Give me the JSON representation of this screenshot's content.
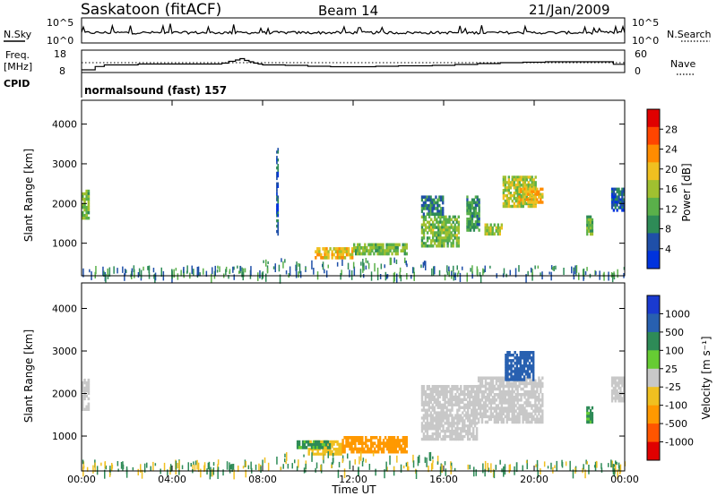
{
  "header": {
    "station": "Saskatoon (fitACF)",
    "beam": "Beam 14",
    "date": "21/Jan/2009"
  },
  "nsky_panel": {
    "left_label": "N.Sky",
    "left_ticks": [
      "10^5",
      "10^0"
    ],
    "right_ticks": [
      "10^5",
      "10^0"
    ],
    "right_label": "N.Search"
  },
  "freq_panel": {
    "left_label_1": "Freq.",
    "left_label_2": "[MHz]",
    "left_ticks": [
      "18",
      "8"
    ],
    "right_ticks": [
      "60",
      "0"
    ],
    "right_label": "Nave",
    "cpid_label": "CPID",
    "mode_text": "normalsound (fast) 157"
  },
  "power_panel": {
    "ylabel": "Slant Range [km]",
    "yticks": [
      "4000",
      "3000",
      "2000",
      "1000"
    ],
    "colorbar_label": "Power [dB]",
    "colorbar_ticks": [
      "28",
      "24",
      "20",
      "16",
      "12",
      "8",
      "4"
    ],
    "colors": [
      "#0033dd",
      "#1f4fa8",
      "#2e8b57",
      "#5ab04a",
      "#a0c030",
      "#f0c020",
      "#ff8c00",
      "#ff4500",
      "#e00000"
    ]
  },
  "velocity_panel": {
    "ylabel": "Slant Range [km]",
    "yticks": [
      "4000",
      "3000",
      "2000",
      "1000"
    ],
    "colorbar_label": "Velocity [m s⁻¹]",
    "colorbar_ticks": [
      "1000",
      "500",
      "100",
      "25",
      "-25",
      "-100",
      "-500",
      "-1000"
    ],
    "colors": [
      "#1a3ad0",
      "#2860b0",
      "#2e8b57",
      "#66cc33",
      "#c8c8c8",
      "#f0c020",
      "#ff9900",
      "#ff5500",
      "#e00000"
    ]
  },
  "xaxis": {
    "ticks": [
      "00:00",
      "04:00",
      "08:00",
      "12:00",
      "16:00",
      "20:00",
      "00:00"
    ],
    "label": "Time UT"
  },
  "chart_data": {
    "type": "heatmap",
    "x_range_hours": [
      0,
      24
    ],
    "y_range_km": [
      180,
      4600
    ],
    "freq_range_mhz": [
      8,
      18
    ],
    "freq_step": {
      "hours": [
        0,
        0.6,
        1.0,
        2.5,
        4.0,
        5.3,
        6.0,
        6.2,
        6.5,
        6.8,
        7.0,
        7.2,
        7.4,
        7.6,
        7.8,
        8.0,
        9.0,
        10.0,
        11.0,
        12.0,
        13.0,
        14.0,
        15.5,
        16.5,
        17.5,
        18.5,
        19.5,
        20.5,
        22.0,
        23.5,
        24
      ],
      "mhz": [
        10,
        11.5,
        12.2,
        12.6,
        12.6,
        12.6,
        12.6,
        13.0,
        13.8,
        14.4,
        15.0,
        14.2,
        13.6,
        13.0,
        12.6,
        12.2,
        12.0,
        11.6,
        11.4,
        11.4,
        11.6,
        11.8,
        12.0,
        12.4,
        12.8,
        13.2,
        13.4,
        13.6,
        13.6,
        12.5,
        12.5
      ]
    },
    "nave_reference": 25,
    "power_regions": [
      {
        "t": [
          0.0,
          0.35
        ],
        "r": [
          1600,
          2350
        ],
        "db": 14
      },
      {
        "t": [
          8.6,
          8.7
        ],
        "r": [
          1200,
          3400
        ],
        "db": 6
      },
      {
        "t": [
          10.3,
          12.0
        ],
        "r": [
          600,
          900
        ],
        "db": 20
      },
      {
        "t": [
          12.0,
          14.4
        ],
        "r": [
          700,
          1000
        ],
        "db": 14
      },
      {
        "t": [
          15.0,
          16.7
        ],
        "r": [
          900,
          1700
        ],
        "db": 14
      },
      {
        "t": [
          15.0,
          16.0
        ],
        "r": [
          1700,
          2200
        ],
        "db": 8
      },
      {
        "t": [
          17.0,
          17.6
        ],
        "r": [
          1300,
          2200
        ],
        "db": 10
      },
      {
        "t": [
          17.8,
          18.6
        ],
        "r": [
          1200,
          1500
        ],
        "db": 16
      },
      {
        "t": [
          18.6,
          20.1
        ],
        "r": [
          1900,
          2700
        ],
        "db": 16
      },
      {
        "t": [
          19.3,
          20.4
        ],
        "r": [
          2000,
          2400
        ],
        "db": 20
      },
      {
        "t": [
          22.3,
          22.6
        ],
        "r": [
          1200,
          1700
        ],
        "db": 12
      },
      {
        "t": [
          23.4,
          24.0
        ],
        "r": [
          1800,
          2400
        ],
        "db": 6
      }
    ],
    "velocity_regions": [
      {
        "t": [
          0.0,
          0.35
        ],
        "r": [
          1600,
          2350
        ],
        "v": 0
      },
      {
        "t": [
          10.0,
          11.5
        ],
        "r": [
          550,
          900
        ],
        "v": -80
      },
      {
        "t": [
          11.5,
          14.4
        ],
        "r": [
          600,
          1000
        ],
        "v": -120
      },
      {
        "t": [
          9.5,
          11.0
        ],
        "r": [
          700,
          900
        ],
        "v": 60
      },
      {
        "t": [
          15.0,
          17.5
        ],
        "r": [
          900,
          2200
        ],
        "v": 0
      },
      {
        "t": [
          17.5,
          20.4
        ],
        "r": [
          1300,
          2400
        ],
        "v": 0
      },
      {
        "t": [
          18.7,
          20.0
        ],
        "r": [
          2300,
          3000
        ],
        "v": 150
      },
      {
        "t": [
          22.3,
          22.6
        ],
        "r": [
          1300,
          1700
        ],
        "v": 60
      },
      {
        "t": [
          23.4,
          24.0
        ],
        "r": [
          1800,
          2400
        ],
        "v": 0
      }
    ]
  }
}
